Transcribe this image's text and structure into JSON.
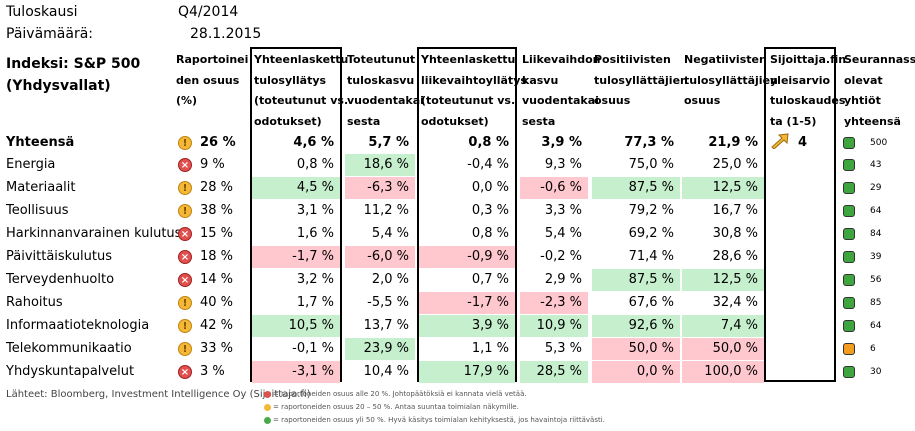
{
  "meta": {
    "season_label": "Tuloskausi",
    "season_value": "Q4/2014",
    "date_label": "Päivämäärä:",
    "date_value": "28.1.2015"
  },
  "header": {
    "index_line1": "Indeksi: S&P 500",
    "index_line2": "(Yhdysvallat)"
  },
  "columns": [
    {
      "lines": [
        "Raportoinei",
        "den osuus",
        "(%)"
      ]
    },
    {
      "lines": [
        "Yhteenlaskettu",
        "tulosyllätys",
        "(toteutunut vs.",
        "odotukset)"
      ]
    },
    {
      "lines": [
        "Toteutunut",
        "tuloskasvu",
        "vuodentakai",
        "sesta"
      ]
    },
    {
      "lines": [
        "Yhteenlaskettu",
        "liikevaihtoyllätys",
        "(toteutunut vs.",
        "odotukset)"
      ]
    },
    {
      "lines": [
        "Liikevaihdon",
        "kasvu",
        "vuodentakai",
        "sesta"
      ]
    },
    {
      "lines": [
        "Positiivisten",
        "tulosyllättäjien",
        "osuus"
      ]
    },
    {
      "lines": [
        "Negatiivisten",
        "tulosyllättäjien",
        "osuus"
      ]
    },
    {
      "lines": [
        "Sijoittaja.fin",
        "yleisarvio",
        "tuloskaudes",
        "ta (1-5)"
      ]
    },
    {
      "lines": [
        "Seurannassa",
        "olevat",
        "yhtiöt",
        "yhteensä"
      ]
    }
  ],
  "total_row": {
    "label": "Yhteensä",
    "status": "warn",
    "share": "26 %",
    "values": [
      "4,6 %",
      "5,7 %",
      "0,8 %",
      "3,9 %",
      "77,3 %",
      "21,9 %"
    ],
    "rating": "4",
    "count": "500",
    "dot": "green"
  },
  "rows": [
    {
      "label": "Energia",
      "status": "bad",
      "share": "9 %",
      "values": [
        "0,8 %",
        "18,6 %",
        "-0,4 %",
        "9,3 %",
        "75,0 %",
        "25,0 %"
      ],
      "fills": [
        "",
        "g",
        "",
        "",
        "",
        ""
      ],
      "count": "43",
      "dot": "green"
    },
    {
      "label": "Materiaalit",
      "status": "warn",
      "share": "28 %",
      "values": [
        "4,5 %",
        "-6,3 %",
        "0,0 %",
        "-0,6 %",
        "87,5 %",
        "12,5 %"
      ],
      "fills": [
        "g",
        "r",
        "",
        "r",
        "g",
        "g"
      ],
      "count": "29",
      "dot": "green"
    },
    {
      "label": "Teollisuus",
      "status": "warn",
      "share": "38 %",
      "values": [
        "3,1 %",
        "11,2 %",
        "0,3 %",
        "3,3 %",
        "79,2 %",
        "16,7 %"
      ],
      "fills": [
        "",
        "",
        "",
        "",
        "",
        ""
      ],
      "count": "64",
      "dot": "green"
    },
    {
      "label": "Harkinnanvarainen kulutus",
      "status": "bad",
      "share": "15 %",
      "values": [
        "1,6 %",
        "5,4 %",
        "0,8 %",
        "5,4 %",
        "69,2 %",
        "30,8 %"
      ],
      "fills": [
        "",
        "",
        "",
        "",
        "",
        ""
      ],
      "count": "84",
      "dot": "green"
    },
    {
      "label": "Päivittäiskulutus",
      "status": "bad",
      "share": "18 %",
      "values": [
        "-1,7 %",
        "-6,0 %",
        "-0,9 %",
        "-0,2 %",
        "71,4 %",
        "28,6 %"
      ],
      "fills": [
        "r",
        "r",
        "r",
        "",
        "",
        ""
      ],
      "count": "39",
      "dot": "green"
    },
    {
      "label": "Terveydenhuolto",
      "status": "bad",
      "share": "14 %",
      "values": [
        "3,2 %",
        "2,0 %",
        "0,7 %",
        "2,9 %",
        "87,5 %",
        "12,5 %"
      ],
      "fills": [
        "",
        "",
        "",
        "",
        "g",
        "g"
      ],
      "count": "56",
      "dot": "green"
    },
    {
      "label": "Rahoitus",
      "status": "warn",
      "share": "40 %",
      "values": [
        "1,7 %",
        "-5,5 %",
        "-1,7 %",
        "-2,3 %",
        "67,6 %",
        "32,4 %"
      ],
      "fills": [
        "",
        "",
        "r",
        "r",
        "",
        ""
      ],
      "count": "85",
      "dot": "green"
    },
    {
      "label": "Informaatioteknologia",
      "status": "warn",
      "share": "42 %",
      "values": [
        "10,5 %",
        "13,7 %",
        "3,9 %",
        "10,9 %",
        "92,6 %",
        "7,4 %"
      ],
      "fills": [
        "g",
        "",
        "g",
        "g",
        "g",
        "g"
      ],
      "count": "64",
      "dot": "green"
    },
    {
      "label": "Telekommunikaatio",
      "status": "warn",
      "share": "33 %",
      "values": [
        "-0,1 %",
        "23,9 %",
        "1,1 %",
        "5,3 %",
        "50,0 %",
        "50,0 %"
      ],
      "fills": [
        "",
        "g",
        "",
        "",
        "r",
        "r"
      ],
      "count": "6",
      "dot": "orange"
    },
    {
      "label": "Yhdyskuntapalvelut",
      "status": "bad",
      "share": "3 %",
      "values": [
        "-3,1 %",
        "10,4 %",
        "17,9 %",
        "28,5 %",
        "0,0 %",
        "100,0 %"
      ],
      "fills": [
        "r",
        "",
        "g",
        "g",
        "r",
        "r"
      ],
      "count": "30",
      "dot": "green"
    }
  ],
  "footer": {
    "source": "Lähteet: Bloomberg, Investment Intelligence Oy (Sijoittaja.fi)",
    "legend": [
      {
        "status": "bad",
        "text": "= raportoneiden osuus alle 20 %. Johtopäätöksiä ei kannata vielä vetää."
      },
      {
        "status": "warn",
        "text": "= raportoneiden osuus 20 – 50 %. Antaa suuntaa toimialan näkymille."
      },
      {
        "status": "good",
        "text": "= raportoneiden osuus yli 50 %. Hyvä käsitys toimialan kehityksestä, jos havaintoja riittävästi."
      }
    ]
  },
  "colors": {
    "positive_fill": "#c6efce",
    "negative_fill": "#ffc7ce",
    "status_warn": "#f5b836",
    "status_bad": "#e0504e",
    "status_good": "#4aa94a"
  }
}
